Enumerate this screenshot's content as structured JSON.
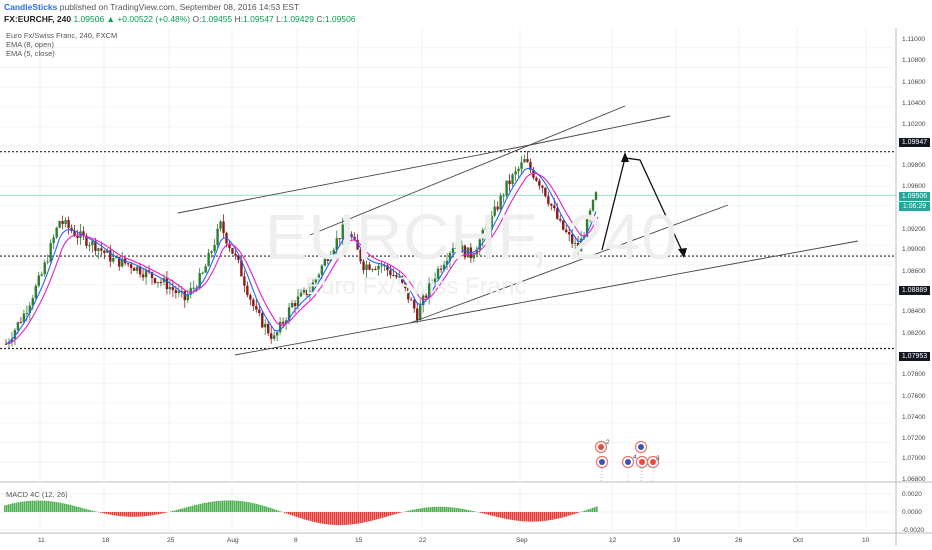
{
  "header": {
    "author": "CandleSticks",
    "published": " published on TradingView.com, September 08, 2016 14:53 EST",
    "symbol": "FX:EURCHF, 240",
    "change": "1.09506 ▲ +0.00522 (+0.48%)",
    "o_label": " O:",
    "o_value": "1.09455",
    "h_label": " H:",
    "h_value": "1.09547",
    "l_label": " L:",
    "l_value": "1.09429",
    "c_label": " C:",
    "c_value": "1.09506"
  },
  "legend": {
    "title": "Euro Fx/Swiss Franc, 240, FXCM",
    "ema1": "EMA (8, open)",
    "ema2": "EMA (5, close)"
  },
  "watermark": {
    "symbol": "EURCHF, 240",
    "name": "Euro Fx/Swiss Franc"
  },
  "macd": {
    "label": "MACD 4C (12, 26)"
  },
  "price_axis": {
    "ticks": [
      "1.11000",
      "1.10800",
      "1.10600",
      "1.10400",
      "1.10200",
      "1.09800",
      "1.09600",
      "1.09200",
      "1.09000",
      "1.08600",
      "1.08400",
      "1.08200",
      "1.07800",
      "1.07600",
      "1.07400",
      "1.07200",
      "1.07000",
      "1.06800"
    ],
    "tags": [
      {
        "text": "1.09947",
        "color": "#131722"
      },
      {
        "text": "1.09506",
        "color": "#26a69a"
      },
      {
        "text": "1:06:29",
        "color": "#26a69a"
      },
      {
        "text": "1.08889",
        "color": "#131722"
      },
      {
        "text": "1.07953",
        "color": "#131722"
      }
    ]
  },
  "macd_axis": {
    "ticks": [
      "0.0020",
      "0.0000",
      "-0.0020"
    ]
  },
  "time_axis": {
    "labels": [
      "11",
      "18",
      "25",
      "Aug",
      "8",
      "15",
      "22",
      "Sep",
      "12",
      "19",
      "26",
      "Oct",
      "10"
    ]
  },
  "events": [
    "2",
    "4",
    "3"
  ],
  "colors": {
    "ema_fast": "#2962ff",
    "ema_slow": "#e91ec9",
    "macd_pos": "#4caf50",
    "macd_neg": "#e53935",
    "up_candle": "#2e7d32",
    "down_candle": "#8b1a1a"
  },
  "chart_data": {
    "type": "candlestick",
    "symbol": "FX:EURCHF",
    "timeframe": "240",
    "ylim": [
      1.066,
      1.112
    ],
    "horizontal_levels": [
      1.09947,
      1.08889,
      1.07953
    ],
    "last_price": 1.09506,
    "close_path": [
      {
        "x": "Jul 4",
        "y": 1.08
      },
      {
        "x": "Jul 6",
        "y": 1.083
      },
      {
        "x": "Jul 8",
        "y": 1.087
      },
      {
        "x": "Jul 10",
        "y": 1.0925
      },
      {
        "x": "Jul 12",
        "y": 1.091
      },
      {
        "x": "Jul 14",
        "y": 1.09
      },
      {
        "x": "Jul 16",
        "y": 1.0885
      },
      {
        "x": "Jul 18",
        "y": 1.088
      },
      {
        "x": "Jul 20",
        "y": 1.087
      },
      {
        "x": "Jul 22",
        "y": 1.086
      },
      {
        "x": "Jul 24",
        "y": 1.0845
      },
      {
        "x": "Jul 26",
        "y": 1.087
      },
      {
        "x": "Jul 28",
        "y": 1.092
      },
      {
        "x": "Jul 30",
        "y": 1.088
      },
      {
        "x": "Aug 1",
        "y": 1.083
      },
      {
        "x": "Aug 3",
        "y": 1.0805
      },
      {
        "x": "Aug 5",
        "y": 1.084
      },
      {
        "x": "Aug 7",
        "y": 1.0855
      },
      {
        "x": "Aug 9",
        "y": 1.089
      },
      {
        "x": "Aug 11",
        "y": 1.092
      },
      {
        "x": "Aug 13",
        "y": 1.088
      },
      {
        "x": "Aug 15",
        "y": 1.088
      },
      {
        "x": "Aug 17",
        "y": 1.0865
      },
      {
        "x": "Aug 19",
        "y": 1.083
      },
      {
        "x": "Aug 21",
        "y": 1.087
      },
      {
        "x": "Aug 23",
        "y": 1.09
      },
      {
        "x": "Aug 25",
        "y": 1.089
      },
      {
        "x": "Aug 27",
        "y": 1.092
      },
      {
        "x": "Aug 29",
        "y": 1.096
      },
      {
        "x": "Aug 31",
        "y": 1.0985
      },
      {
        "x": "Sep 2",
        "y": 1.096
      },
      {
        "x": "Sep 4",
        "y": 1.092
      },
      {
        "x": "Sep 6",
        "y": 1.0895
      },
      {
        "x": "Sep 8",
        "y": 1.095
      }
    ]
  }
}
